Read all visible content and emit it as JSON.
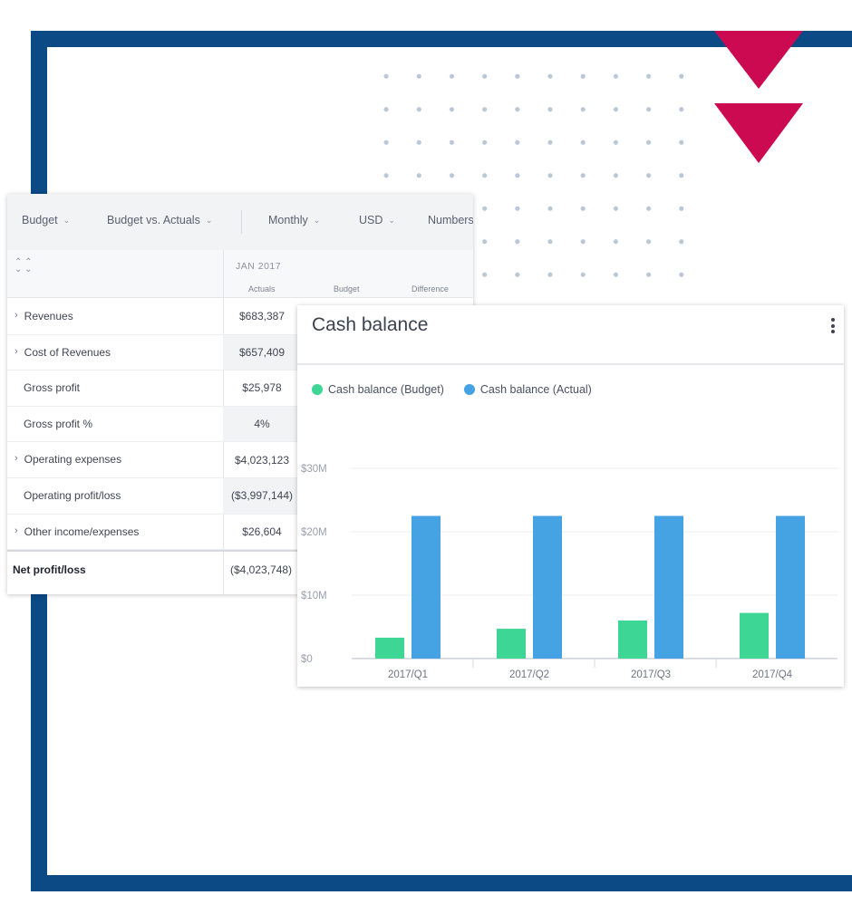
{
  "toolbar": {
    "scenario": "Budget",
    "comparison": "Budget vs. Actuals",
    "period": "Monthly",
    "currency": "USD",
    "numbers": "Numbers"
  },
  "table": {
    "month": "JAN 2017",
    "columns": [
      "Actuals",
      "Budget",
      "Difference"
    ],
    "rows": [
      {
        "label": "Revenues",
        "value": "$683,387"
      },
      {
        "label": "Cost of Revenues",
        "value": "$657,409"
      },
      {
        "label": "Gross profit",
        "value": "$25,978"
      },
      {
        "label": "Gross profit %",
        "value": "4%"
      },
      {
        "label": "Operating expenses",
        "value": "$4,023,123"
      },
      {
        "label": "Operating profit/loss",
        "value": "($3,997,144)"
      },
      {
        "label": "Other income/expenses",
        "value": "$26,604"
      }
    ],
    "net": {
      "label": "Net profit/loss",
      "value": "($4,023,748)"
    }
  },
  "chart_panel": {
    "title": "Cash balance"
  },
  "chart_data": {
    "type": "bar",
    "categories": [
      "2017/Q1",
      "2017/Q2",
      "2017/Q3",
      "2017/Q4"
    ],
    "series": [
      {
        "name": "Cash balance (Budget)",
        "values": [
          3.3,
          4.7,
          6,
          7.2
        ],
        "color": "#3dd694"
      },
      {
        "name": "Cash balance (Actual)",
        "values": [
          22.5,
          22.5,
          22.5,
          22.5
        ],
        "color": "#45a2e3"
      }
    ],
    "yticks": [
      "$0",
      "$10M",
      "$20M",
      "$30M"
    ],
    "ylim": [
      0,
      30
    ],
    "grid": true,
    "legend": "top-left"
  },
  "colors": {
    "frame": "#0c4a86",
    "accent": "#cc0a52"
  }
}
